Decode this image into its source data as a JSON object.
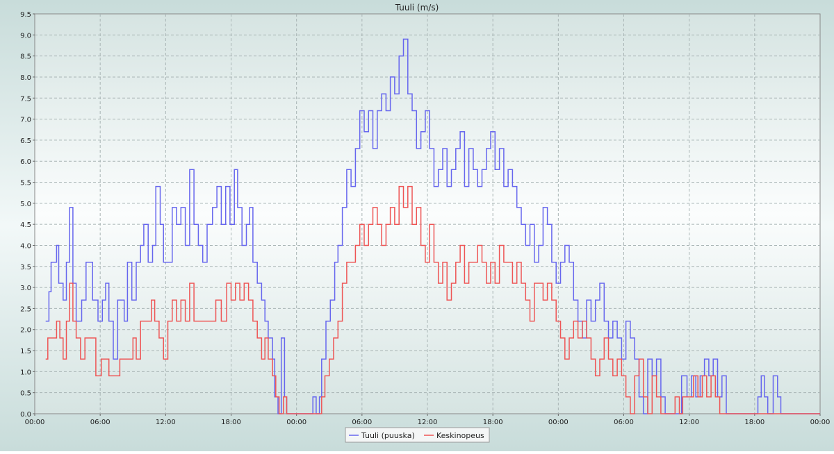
{
  "chart_data": {
    "type": "line",
    "title": "Tuuli (m/s)",
    "xlabel": "",
    "ylabel": "",
    "ylim": [
      0,
      9.5
    ],
    "grid": true,
    "legend_position": "bottom-center",
    "x_unit": "hours",
    "x_range": [
      0,
      72
    ],
    "x_ticks": [
      {
        "x": 0,
        "label": "00:00"
      },
      {
        "x": 6,
        "label": "06:00"
      },
      {
        "x": 12,
        "label": "12:00"
      },
      {
        "x": 18,
        "label": "18:00"
      },
      {
        "x": 24,
        "label": "00:00"
      },
      {
        "x": 30,
        "label": "06:00"
      },
      {
        "x": 36,
        "label": "12:00"
      },
      {
        "x": 42,
        "label": "18:00"
      },
      {
        "x": 48,
        "label": "00:00"
      },
      {
        "x": 54,
        "label": "06:00"
      },
      {
        "x": 60,
        "label": "12:00"
      },
      {
        "x": 66,
        "label": "18:00"
      },
      {
        "x": 72,
        "label": "00:00"
      }
    ],
    "y_ticks": [
      "0.0",
      "0.5",
      "1.0",
      "1.5",
      "2.0",
      "2.5",
      "3.0",
      "3.5",
      "4.0",
      "4.5",
      "5.0",
      "5.5",
      "6.0",
      "6.5",
      "7.0",
      "7.5",
      "8.0",
      "8.5",
      "9.0",
      "9.5"
    ],
    "series": [
      {
        "name": "Tuuli (puuska)",
        "color": "#6666ee",
        "points": [
          [
            1.0,
            2.2
          ],
          [
            1.3,
            2.9
          ],
          [
            1.5,
            3.6
          ],
          [
            2.0,
            4.0
          ],
          [
            2.2,
            3.1
          ],
          [
            2.6,
            2.7
          ],
          [
            2.9,
            3.6
          ],
          [
            3.2,
            4.9
          ],
          [
            3.5,
            3.1
          ],
          [
            3.8,
            2.2
          ],
          [
            4.3,
            2.7
          ],
          [
            4.7,
            3.6
          ],
          [
            5.3,
            2.7
          ],
          [
            5.8,
            2.2
          ],
          [
            6.2,
            2.7
          ],
          [
            6.5,
            3.1
          ],
          [
            6.8,
            2.2
          ],
          [
            7.2,
            1.3
          ],
          [
            7.6,
            2.7
          ],
          [
            8.2,
            2.2
          ],
          [
            8.5,
            3.6
          ],
          [
            8.9,
            2.7
          ],
          [
            9.3,
            3.6
          ],
          [
            9.7,
            4.0
          ],
          [
            10.0,
            4.5
          ],
          [
            10.4,
            3.6
          ],
          [
            10.8,
            4.0
          ],
          [
            11.1,
            5.4
          ],
          [
            11.5,
            4.5
          ],
          [
            11.8,
            3.6
          ],
          [
            12.2,
            3.6
          ],
          [
            12.6,
            4.9
          ],
          [
            13.0,
            4.5
          ],
          [
            13.4,
            4.9
          ],
          [
            13.8,
            4.0
          ],
          [
            14.2,
            5.8
          ],
          [
            14.6,
            4.5
          ],
          [
            15.0,
            4.0
          ],
          [
            15.4,
            3.6
          ],
          [
            15.8,
            4.5
          ],
          [
            16.3,
            4.9
          ],
          [
            16.7,
            5.4
          ],
          [
            17.1,
            4.5
          ],
          [
            17.5,
            5.4
          ],
          [
            17.9,
            4.5
          ],
          [
            18.3,
            5.8
          ],
          [
            18.6,
            4.9
          ],
          [
            19.0,
            4.0
          ],
          [
            19.4,
            4.5
          ],
          [
            19.7,
            4.9
          ],
          [
            20.0,
            3.6
          ],
          [
            20.4,
            3.1
          ],
          [
            20.8,
            2.7
          ],
          [
            21.1,
            2.2
          ],
          [
            21.4,
            1.8
          ],
          [
            21.8,
            1.3
          ],
          [
            22.0,
            0.4
          ],
          [
            22.3,
            0.0
          ],
          [
            22.6,
            1.8
          ],
          [
            22.9,
            0.4
          ],
          [
            23.1,
            0.0
          ],
          [
            25.5,
            0.4
          ],
          [
            25.8,
            0.0
          ],
          [
            26.1,
            0.4
          ],
          [
            26.3,
            1.3
          ],
          [
            26.7,
            2.2
          ],
          [
            27.1,
            2.7
          ],
          [
            27.5,
            3.6
          ],
          [
            27.8,
            4.0
          ],
          [
            28.2,
            4.9
          ],
          [
            28.6,
            5.8
          ],
          [
            29.0,
            5.4
          ],
          [
            29.4,
            6.3
          ],
          [
            29.8,
            7.2
          ],
          [
            30.2,
            6.7
          ],
          [
            30.6,
            7.2
          ],
          [
            31.0,
            6.3
          ],
          [
            31.4,
            7.2
          ],
          [
            31.8,
            7.6
          ],
          [
            32.2,
            7.2
          ],
          [
            32.6,
            8.0
          ],
          [
            33.0,
            7.6
          ],
          [
            33.4,
            8.5
          ],
          [
            33.8,
            8.9
          ],
          [
            34.2,
            7.6
          ],
          [
            34.6,
            7.2
          ],
          [
            35.0,
            6.3
          ],
          [
            35.4,
            6.7
          ],
          [
            35.8,
            7.2
          ],
          [
            36.2,
            6.3
          ],
          [
            36.6,
            5.4
          ],
          [
            37.0,
            5.8
          ],
          [
            37.4,
            6.3
          ],
          [
            37.8,
            5.4
          ],
          [
            38.2,
            5.8
          ],
          [
            38.6,
            6.3
          ],
          [
            39.0,
            6.7
          ],
          [
            39.4,
            5.4
          ],
          [
            39.8,
            6.3
          ],
          [
            40.2,
            5.8
          ],
          [
            40.6,
            5.4
          ],
          [
            41.0,
            5.8
          ],
          [
            41.4,
            6.3
          ],
          [
            41.8,
            6.7
          ],
          [
            42.2,
            5.8
          ],
          [
            42.6,
            6.3
          ],
          [
            43.0,
            5.4
          ],
          [
            43.4,
            5.8
          ],
          [
            43.8,
            5.4
          ],
          [
            44.2,
            4.9
          ],
          [
            44.6,
            4.5
          ],
          [
            45.0,
            4.0
          ],
          [
            45.4,
            4.5
          ],
          [
            45.8,
            3.6
          ],
          [
            46.2,
            4.0
          ],
          [
            46.6,
            4.9
          ],
          [
            47.0,
            4.5
          ],
          [
            47.4,
            3.6
          ],
          [
            47.8,
            3.1
          ],
          [
            48.2,
            3.6
          ],
          [
            48.6,
            4.0
          ],
          [
            49.0,
            3.6
          ],
          [
            49.4,
            2.7
          ],
          [
            49.8,
            2.2
          ],
          [
            50.2,
            1.8
          ],
          [
            50.6,
            2.7
          ],
          [
            51.0,
            2.2
          ],
          [
            51.4,
            2.7
          ],
          [
            51.8,
            3.1
          ],
          [
            52.2,
            2.2
          ],
          [
            52.6,
            1.8
          ],
          [
            53.0,
            2.2
          ],
          [
            53.4,
            1.8
          ],
          [
            53.8,
            1.3
          ],
          [
            54.2,
            2.2
          ],
          [
            54.6,
            1.8
          ],
          [
            55.0,
            1.3
          ],
          [
            55.4,
            0.4
          ],
          [
            55.8,
            0.0
          ],
          [
            56.2,
            1.3
          ],
          [
            56.6,
            0.9
          ],
          [
            57.0,
            1.3
          ],
          [
            57.4,
            0.4
          ],
          [
            57.8,
            0.0
          ],
          [
            59.3,
            0.9
          ],
          [
            59.8,
            0.4
          ],
          [
            60.2,
            0.9
          ],
          [
            60.6,
            0.4
          ],
          [
            61.0,
            0.9
          ],
          [
            61.4,
            1.3
          ],
          [
            61.8,
            0.9
          ],
          [
            62.2,
            1.3
          ],
          [
            62.6,
            0.4
          ],
          [
            63.0,
            0.9
          ],
          [
            63.4,
            0.0
          ],
          [
            66.3,
            0.4
          ],
          [
            66.6,
            0.9
          ],
          [
            66.9,
            0.4
          ],
          [
            67.2,
            0.0
          ],
          [
            67.7,
            0.9
          ],
          [
            68.1,
            0.4
          ],
          [
            68.4,
            0.0
          ],
          [
            72.0,
            0.0
          ]
        ]
      },
      {
        "name": "Keskinopeus",
        "color": "#ee5555",
        "points": [
          [
            1.0,
            1.3
          ],
          [
            1.2,
            1.8
          ],
          [
            2.0,
            2.2
          ],
          [
            2.3,
            1.8
          ],
          [
            2.6,
            1.3
          ],
          [
            2.9,
            2.2
          ],
          [
            3.2,
            3.1
          ],
          [
            3.5,
            2.2
          ],
          [
            3.8,
            1.8
          ],
          [
            4.2,
            1.3
          ],
          [
            4.6,
            1.8
          ],
          [
            5.3,
            1.8
          ],
          [
            5.6,
            0.9
          ],
          [
            6.1,
            1.3
          ],
          [
            6.8,
            0.9
          ],
          [
            7.8,
            1.3
          ],
          [
            8.5,
            1.3
          ],
          [
            9.0,
            1.8
          ],
          [
            9.3,
            1.3
          ],
          [
            9.7,
            2.2
          ],
          [
            10.3,
            2.2
          ],
          [
            10.7,
            2.7
          ],
          [
            11.0,
            2.2
          ],
          [
            11.4,
            1.8
          ],
          [
            11.8,
            1.3
          ],
          [
            12.2,
            2.2
          ],
          [
            12.6,
            2.7
          ],
          [
            13.0,
            2.2
          ],
          [
            13.4,
            2.7
          ],
          [
            13.8,
            2.2
          ],
          [
            14.2,
            3.1
          ],
          [
            14.6,
            2.2
          ],
          [
            15.2,
            2.2
          ],
          [
            15.7,
            2.2
          ],
          [
            16.2,
            2.2
          ],
          [
            16.6,
            2.7
          ],
          [
            17.1,
            2.2
          ],
          [
            17.6,
            3.1
          ],
          [
            18.0,
            2.7
          ],
          [
            18.4,
            3.1
          ],
          [
            18.8,
            2.7
          ],
          [
            19.2,
            3.1
          ],
          [
            19.6,
            2.7
          ],
          [
            20.0,
            2.2
          ],
          [
            20.4,
            1.8
          ],
          [
            20.8,
            1.3
          ],
          [
            21.1,
            1.8
          ],
          [
            21.4,
            1.3
          ],
          [
            21.8,
            0.9
          ],
          [
            22.1,
            0.4
          ],
          [
            22.4,
            0.0
          ],
          [
            22.8,
            0.4
          ],
          [
            23.1,
            0.0
          ],
          [
            26.3,
            0.4
          ],
          [
            26.6,
            0.9
          ],
          [
            27.0,
            1.3
          ],
          [
            27.4,
            1.8
          ],
          [
            27.8,
            2.2
          ],
          [
            28.2,
            3.1
          ],
          [
            28.6,
            3.6
          ],
          [
            29.0,
            3.6
          ],
          [
            29.4,
            4.0
          ],
          [
            29.8,
            4.5
          ],
          [
            30.2,
            4.0
          ],
          [
            30.6,
            4.5
          ],
          [
            31.0,
            4.9
          ],
          [
            31.4,
            4.5
          ],
          [
            31.8,
            4.0
          ],
          [
            32.2,
            4.5
          ],
          [
            32.6,
            4.9
          ],
          [
            33.0,
            4.5
          ],
          [
            33.4,
            5.4
          ],
          [
            33.8,
            4.9
          ],
          [
            34.2,
            5.4
          ],
          [
            34.6,
            4.5
          ],
          [
            35.0,
            4.9
          ],
          [
            35.4,
            4.0
          ],
          [
            35.8,
            3.6
          ],
          [
            36.2,
            4.5
          ],
          [
            36.6,
            3.6
          ],
          [
            37.0,
            3.1
          ],
          [
            37.4,
            3.6
          ],
          [
            37.8,
            2.7
          ],
          [
            38.2,
            3.1
          ],
          [
            38.6,
            3.6
          ],
          [
            39.0,
            4.0
          ],
          [
            39.4,
            3.1
          ],
          [
            39.8,
            3.6
          ],
          [
            40.2,
            3.6
          ],
          [
            40.6,
            4.0
          ],
          [
            41.0,
            3.6
          ],
          [
            41.4,
            3.1
          ],
          [
            41.8,
            3.6
          ],
          [
            42.2,
            3.1
          ],
          [
            42.6,
            4.0
          ],
          [
            43.0,
            3.6
          ],
          [
            43.4,
            3.6
          ],
          [
            43.8,
            3.1
          ],
          [
            44.2,
            3.6
          ],
          [
            44.6,
            3.1
          ],
          [
            45.0,
            2.7
          ],
          [
            45.4,
            2.2
          ],
          [
            45.8,
            3.1
          ],
          [
            46.2,
            3.1
          ],
          [
            46.6,
            2.7
          ],
          [
            47.0,
            3.1
          ],
          [
            47.4,
            2.7
          ],
          [
            47.8,
            2.2
          ],
          [
            48.2,
            1.8
          ],
          [
            48.6,
            1.3
          ],
          [
            49.0,
            1.8
          ],
          [
            49.4,
            2.2
          ],
          [
            49.8,
            1.8
          ],
          [
            50.2,
            2.2
          ],
          [
            50.6,
            1.8
          ],
          [
            51.0,
            1.3
          ],
          [
            51.4,
            0.9
          ],
          [
            51.8,
            1.3
          ],
          [
            52.2,
            1.8
          ],
          [
            52.6,
            1.3
          ],
          [
            53.0,
            0.9
          ],
          [
            53.4,
            1.3
          ],
          [
            53.8,
            0.9
          ],
          [
            54.2,
            0.4
          ],
          [
            54.6,
            0.0
          ],
          [
            55.0,
            0.9
          ],
          [
            55.4,
            1.3
          ],
          [
            55.8,
            0.4
          ],
          [
            56.2,
            0.0
          ],
          [
            56.6,
            0.9
          ],
          [
            57.0,
            0.4
          ],
          [
            57.4,
            0.0
          ],
          [
            58.7,
            0.4
          ],
          [
            59.1,
            0.0
          ],
          [
            59.4,
            0.4
          ],
          [
            60.0,
            0.4
          ],
          [
            60.4,
            0.9
          ],
          [
            60.8,
            0.4
          ],
          [
            61.2,
            0.9
          ],
          [
            61.6,
            0.4
          ],
          [
            62.0,
            0.9
          ],
          [
            62.4,
            0.4
          ],
          [
            62.8,
            0.0
          ],
          [
            63.4,
            0.0
          ],
          [
            72.0,
            0.0
          ]
        ]
      }
    ]
  }
}
